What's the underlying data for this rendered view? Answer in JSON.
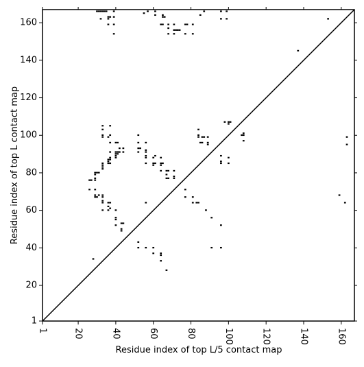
{
  "chart_data": {
    "type": "scatter",
    "marker": "square",
    "color": "#000000",
    "diagonal_line": true,
    "xlabel": "Residue index of top L/5 contact map",
    "ylabel": "Residue index of top L contact map",
    "xlim": [
      1,
      167
    ],
    "ylim": [
      1,
      167
    ],
    "xticks": [
      1,
      20,
      40,
      60,
      80,
      100,
      120,
      140,
      160
    ],
    "yticks": [
      1,
      20,
      40,
      60,
      80,
      100,
      120,
      140,
      160
    ],
    "x": [
      30,
      31,
      32,
      33,
      34,
      35,
      39,
      57,
      61,
      87,
      96,
      99,
      55,
      61,
      65,
      36,
      37,
      39,
      65,
      66,
      85,
      32,
      36,
      96,
      99,
      153,
      36,
      39,
      64,
      65,
      68,
      71,
      77,
      78,
      81,
      71,
      72,
      73,
      74,
      68,
      39,
      68,
      71,
      77,
      81,
      137,
      33,
      33,
      37,
      33,
      33,
      36,
      37,
      52,
      84,
      84,
      84,
      86,
      87,
      89,
      85,
      86,
      89,
      89,
      98,
      100,
      101,
      100,
      107,
      108,
      108,
      108,
      163,
      163,
      37,
      40,
      41,
      52,
      56,
      42,
      44,
      52,
      53,
      56,
      37,
      40,
      41,
      42,
      44,
      40,
      41,
      40,
      40,
      52,
      56,
      56,
      56,
      60,
      61,
      64,
      37,
      37,
      36,
      36,
      36,
      37,
      33,
      33,
      33,
      33,
      56,
      60,
      61,
      60,
      64,
      65,
      64,
      64,
      67,
      68,
      67,
      67,
      68,
      71,
      71,
      71,
      96,
      100,
      96,
      96,
      100,
      29,
      30,
      31,
      29,
      29,
      29,
      26,
      27,
      26,
      29,
      29,
      29,
      30,
      31,
      33,
      33,
      33,
      33,
      36,
      37,
      36,
      36,
      37,
      33,
      40,
      40,
      40,
      40,
      43,
      44,
      43,
      43,
      56,
      77,
      77,
      81,
      81,
      83,
      84,
      88,
      91,
      96,
      52,
      52,
      56,
      60,
      60,
      64,
      64,
      64,
      67,
      28,
      91,
      96,
      159,
      162
    ],
    "values": [
      166,
      166,
      166,
      166,
      166,
      166,
      166,
      166,
      166,
      166,
      166,
      166,
      165,
      164,
      164,
      163,
      163,
      163,
      163,
      163,
      164,
      162,
      162,
      162,
      162,
      162,
      159,
      159,
      159,
      159,
      159,
      159,
      159,
      159,
      159,
      156,
      156,
      156,
      156,
      157,
      154,
      154,
      154,
      154,
      154,
      145,
      105,
      103,
      105,
      100,
      99,
      99,
      100,
      100,
      103,
      100,
      99,
      99,
      99,
      99,
      96,
      96,
      95,
      96,
      107,
      107,
      107,
      106,
      100,
      100,
      101,
      97,
      99,
      95,
      96,
      96,
      96,
      96,
      96,
      93,
      93,
      93,
      93,
      92,
      91,
      91,
      91,
      91,
      91,
      90,
      90,
      89,
      88,
      91,
      91,
      89,
      88,
      88,
      89,
      88,
      88,
      87,
      87,
      86,
      85,
      85,
      85,
      84,
      83,
      82,
      85,
      85,
      85,
      84,
      85,
      85,
      84,
      81,
      81,
      81,
      79,
      77,
      77,
      81,
      78,
      77,
      89,
      88,
      86,
      85,
      85,
      80,
      80,
      80,
      79,
      77,
      76,
      76,
      76,
      71,
      71,
      68,
      67,
      67,
      68,
      68,
      67,
      65,
      64,
      64,
      64,
      62,
      60,
      61,
      60,
      60,
      56,
      55,
      52,
      53,
      53,
      50,
      49,
      64,
      71,
      67,
      67,
      64,
      64,
      64,
      60,
      56,
      52,
      43,
      40,
      40,
      40,
      37,
      37,
      36,
      33,
      28,
      34,
      40,
      40,
      68,
      64
    ]
  }
}
